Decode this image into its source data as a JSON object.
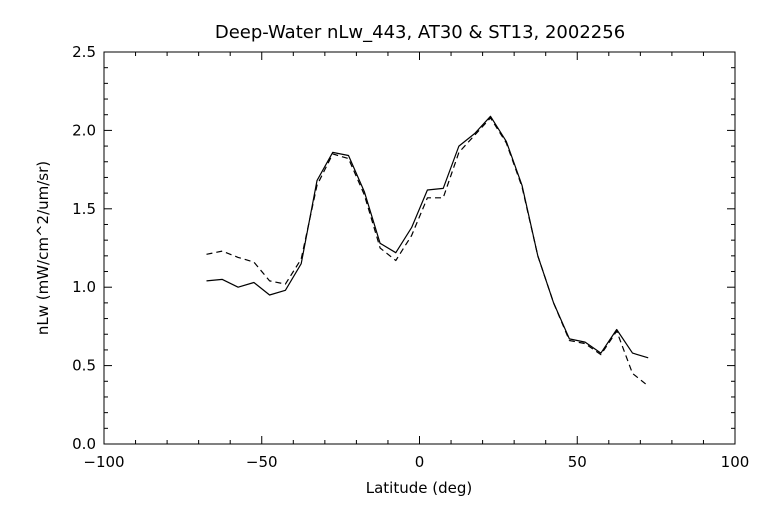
{
  "colors": {
    "background": "#ffffff",
    "ink": "#000000"
  },
  "chart_data": {
    "type": "line",
    "title": "Deep-Water nLw_443, AT30 & ST13, 2002256",
    "xlabel": "Latitude (deg)",
    "ylabel": "nLw (mW/cm^2/um/sr)",
    "xlim": [
      -100,
      100
    ],
    "ylim": [
      0.0,
      2.5
    ],
    "xticks": [
      -100,
      -50,
      0,
      50,
      100
    ],
    "xtick_labels": [
      "−100",
      "−50",
      "0",
      "50",
      "100"
    ],
    "yticks": [
      0.0,
      0.5,
      1.0,
      1.5,
      2.0,
      2.5
    ],
    "ytick_labels": [
      "0.0",
      "0.5",
      "1.0",
      "1.5",
      "2.0",
      "2.5"
    ],
    "grid": false,
    "legend": "none",
    "x": [
      -67.5,
      -62.5,
      -57.5,
      -52.5,
      -47.5,
      -42.5,
      -37.5,
      -32.5,
      -27.5,
      -22.5,
      -17.5,
      -12.5,
      -7.5,
      -2.5,
      2.5,
      7.5,
      12.5,
      17.5,
      22.5,
      27.5,
      32.5,
      37.5,
      42.5,
      47.5,
      52.5,
      57.5,
      62.5,
      67.5,
      72.5
    ],
    "series": [
      {
        "line_style": "solid",
        "values": [
          1.04,
          1.05,
          1.0,
          1.03,
          0.95,
          0.98,
          1.15,
          1.68,
          1.86,
          1.84,
          1.61,
          1.28,
          1.22,
          1.38,
          1.62,
          1.63,
          1.9,
          1.98,
          2.09,
          1.93,
          1.65,
          1.2,
          0.9,
          0.67,
          0.65,
          0.58,
          0.73,
          0.58,
          0.55
        ]
      },
      {
        "line_style": "dashed",
        "values": [
          1.21,
          1.23,
          1.19,
          1.16,
          1.04,
          1.02,
          1.18,
          1.65,
          1.85,
          1.82,
          1.59,
          1.25,
          1.17,
          1.33,
          1.57,
          1.57,
          1.86,
          1.97,
          2.08,
          1.92,
          1.64,
          1.2,
          0.9,
          0.66,
          0.64,
          0.57,
          0.72,
          0.45,
          0.37
        ]
      }
    ]
  }
}
